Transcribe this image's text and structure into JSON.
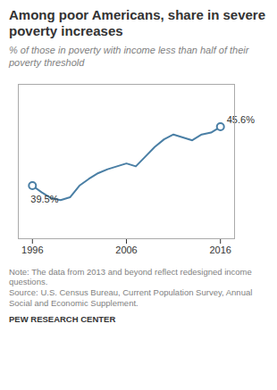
{
  "chart_data": {
    "type": "line",
    "title": "Among poor Americans, share in severe\npoverty increases",
    "subtitle": "% of those in poverty with income less than half of their\npoverty threshold",
    "x": [
      1996,
      1997,
      1998,
      1999,
      2000,
      2001,
      2002,
      2003,
      2004,
      2005,
      2006,
      2007,
      2008,
      2009,
      2010,
      2011,
      2012,
      2013,
      2014,
      2015,
      2016
    ],
    "values": [
      39.5,
      38.8,
      38.2,
      38.0,
      38.3,
      39.5,
      40.2,
      40.8,
      41.2,
      41.5,
      41.8,
      41.5,
      42.5,
      43.5,
      44.3,
      44.8,
      44.5,
      44.2,
      44.8,
      45.0,
      45.6
    ],
    "color": "#4a7fa5",
    "annotations": [
      {
        "x": 1996,
        "y": 39.5,
        "text": "39.5%"
      },
      {
        "x": 2016,
        "y": 45.6,
        "text": "45.6%"
      }
    ],
    "xlim": [
      1994.5,
      2017.5
    ],
    "xticks": [
      1996,
      2006,
      2016
    ],
    "ylim": [
      34,
      50
    ],
    "tick_labels": "x",
    "grid": false,
    "note": "Note: The data from 2013 and beyond reflect redesigned income\nquestions.\nSource: U.S. Census Bureau, Current Population Survey, Annual\nSocial and Economic Supplement.",
    "source": "PEW RESEARCH CENTER"
  }
}
